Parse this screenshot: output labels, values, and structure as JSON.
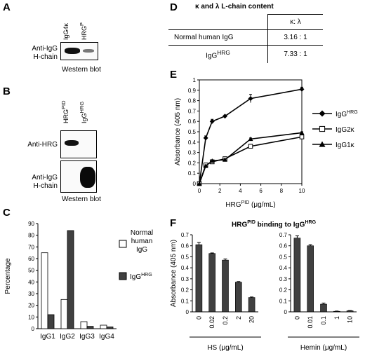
{
  "panel_letters": [
    "A",
    "B",
    "C",
    "D",
    "E",
    "F"
  ],
  "panelA": {
    "lanes": [
      "IgG4κ",
      "HRG"
    ],
    "lane_sup": [
      "",
      "P"
    ],
    "row_label_1": "Anti-IgG",
    "row_label_2": "H-chain",
    "caption": "Western blot"
  },
  "panelB": {
    "lanes": [
      "HRG",
      "IgG"
    ],
    "lane_sup": [
      "PID",
      "HRG"
    ],
    "row1_label": "Anti-HRG",
    "row2_label_1": "Anti-IgG",
    "row2_label_2": "H-chain",
    "caption": "Western blot"
  },
  "panelD": {
    "title": "κ and λ L-chain content",
    "header": "κ: λ",
    "rows": [
      {
        "name": "Normal human IgG",
        "sup": "",
        "ratio": "3.16 : 1"
      },
      {
        "name": "IgG",
        "sup": "HRG",
        "ratio": "7.33 : 1"
      }
    ]
  },
  "chart_data": [
    {
      "panel": "C",
      "type": "bar",
      "ylabel": "Percentage",
      "ylim": [
        0,
        90
      ],
      "yticks": [
        0,
        10,
        20,
        30,
        40,
        50,
        60,
        70,
        80,
        90
      ],
      "categories": [
        "IgG1",
        "IgG2",
        "IgG3",
        "IgG4"
      ],
      "series": [
        {
          "name": "Normal human IgG",
          "name_lines": [
            "Normal",
            "human",
            "IgG"
          ],
          "values": [
            65,
            25,
            6,
            3
          ],
          "color": "#ffffff"
        },
        {
          "name": "IgG HRG",
          "base": "IgG",
          "sup": "HRG",
          "values": [
            12,
            84,
            2,
            1.5
          ],
          "color": "#404040"
        }
      ]
    },
    {
      "panel": "E",
      "type": "line",
      "xlabel": "HRG (μg/mL)",
      "xlabel_base": "HRG",
      "xlabel_sup": "PID",
      "xlabel_unit": " (μg/mL)",
      "ylabel": "Absorbance (405 nm)",
      "xlim": [
        0,
        10
      ],
      "ylim": [
        0,
        1
      ],
      "xticks": [
        0,
        2,
        4,
        6,
        8,
        10
      ],
      "yticks": [
        0,
        0.1,
        0.2,
        0.3,
        0.4,
        0.5,
        0.6,
        0.7,
        0.8,
        0.9,
        1
      ],
      "ytick_labels": [
        "0",
        "0.1",
        "0.2",
        "0.3",
        "0.4",
        "0.5",
        "0.6",
        "0.7",
        "0.8",
        "0.9",
        "1"
      ],
      "x": [
        0,
        0.625,
        1.25,
        2.5,
        5,
        10
      ],
      "series": [
        {
          "name": "IgG HRG",
          "base": "IgG",
          "sup": "HRG",
          "marker": "diamond",
          "values": [
            0,
            0.44,
            0.6,
            0.65,
            0.82,
            0.91
          ],
          "errors": [
            0,
            0.02,
            0.02,
            0.01,
            0.04,
            0.02
          ]
        },
        {
          "name": "IgG2κ",
          "base": "IgG2κ",
          "sup": "",
          "marker": "square",
          "values": [
            0,
            0.18,
            0.21,
            0.24,
            0.36,
            0.45
          ],
          "errors": [
            0,
            0.01,
            0.01,
            0.01,
            0.01,
            0.01
          ]
        },
        {
          "name": "IgG1κ",
          "base": "IgG1κ",
          "sup": "",
          "marker": "triangle",
          "values": [
            0,
            0.17,
            0.22,
            0.23,
            0.43,
            0.49
          ],
          "errors": [
            0,
            0.01,
            0.01,
            0.01,
            0.01,
            0.01
          ]
        }
      ]
    },
    {
      "panel": "F-left",
      "type": "bar",
      "title": "HRG binding to IgG",
      "ylabel": "Absorbance (405 nm)",
      "xlabel": "HS (μg/mL)",
      "ylim": [
        0,
        0.7
      ],
      "yticks": [
        0,
        0.1,
        0.2,
        0.3,
        0.4,
        0.5,
        0.6,
        0.7
      ],
      "ytick_labels": [
        "0",
        "0.1",
        "0.2",
        "0.3",
        "0.4",
        "0.5",
        "0.6",
        "0.7"
      ],
      "categories": [
        "0",
        "0.02",
        "0.2",
        "2",
        "20"
      ],
      "values": [
        0.61,
        0.53,
        0.47,
        0.27,
        0.13
      ],
      "errors": [
        0.02,
        0.005,
        0.01,
        0.005,
        0.005
      ]
    },
    {
      "panel": "F-right",
      "type": "bar",
      "xlabel": "Hemin (μg/mL)",
      "ylim": [
        0,
        0.7
      ],
      "yticks": [
        0,
        0.1,
        0.2,
        0.3,
        0.4,
        0.5,
        0.6,
        0.7
      ],
      "categories": [
        "0",
        "0.01",
        "0.1",
        "1",
        "10"
      ],
      "values": [
        0.67,
        0.6,
        0.07,
        0.005,
        0.01
      ],
      "errors": [
        0.02,
        0.01,
        0.01,
        0.002,
        0.002
      ]
    }
  ],
  "panelF_title": {
    "base1": "HRG",
    "sup1": "PID",
    "mid": " binding to IgG",
    "sup2": "HRG"
  }
}
